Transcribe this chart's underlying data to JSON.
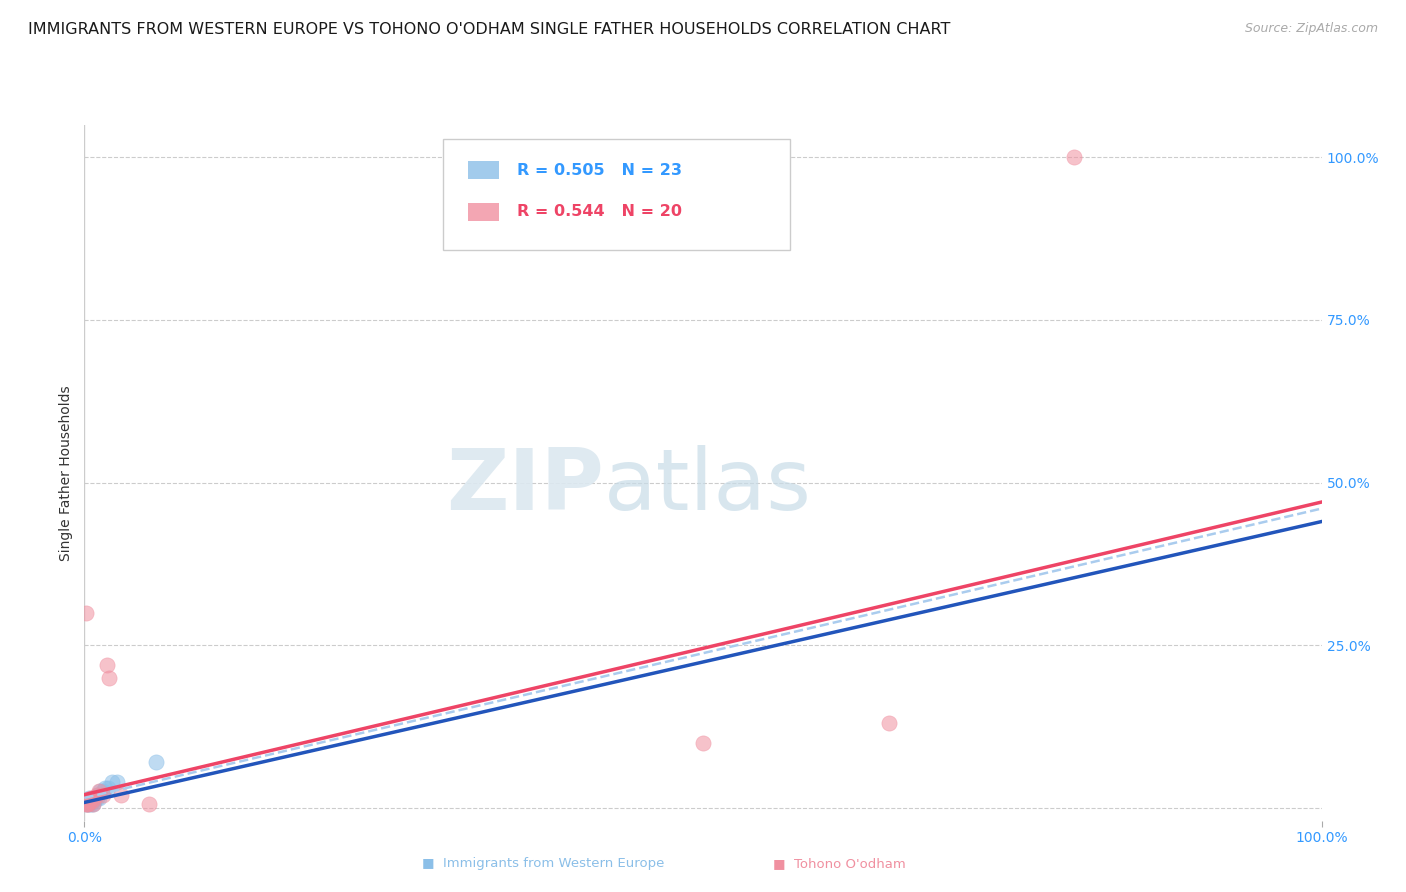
{
  "title": "IMMIGRANTS FROM WESTERN EUROPE VS TOHONO O'ODHAM SINGLE FATHER HOUSEHOLDS CORRELATION CHART",
  "source": "Source: ZipAtlas.com",
  "ylabel": "Single Father Households",
  "y_ticks": [
    0.0,
    0.25,
    0.5,
    0.75,
    1.0
  ],
  "y_tick_labels": [
    "",
    "25.0%",
    "50.0%",
    "75.0%",
    "100.0%"
  ],
  "x_range": [
    0.0,
    1.0
  ],
  "y_range": [
    -0.02,
    1.05
  ],
  "watermark_zip": "ZIP",
  "watermark_atlas": "atlas",
  "legend_entries": [
    {
      "label": "Immigrants from Western Europe",
      "R": "0.505",
      "N": "23",
      "color": "#8bbfe8"
    },
    {
      "label": "Tohono O'odham",
      "R": "0.544",
      "N": "20",
      "color": "#f090a0"
    }
  ],
  "blue_scatter_x": [
    0.001,
    0.002,
    0.003,
    0.003,
    0.004,
    0.004,
    0.005,
    0.005,
    0.006,
    0.007,
    0.007,
    0.008,
    0.009,
    0.01,
    0.011,
    0.012,
    0.013,
    0.015,
    0.017,
    0.019,
    0.022,
    0.026,
    0.058
  ],
  "blue_scatter_y": [
    0.005,
    0.008,
    0.005,
    0.01,
    0.005,
    0.015,
    0.005,
    0.01,
    0.01,
    0.005,
    0.015,
    0.01,
    0.015,
    0.015,
    0.02,
    0.015,
    0.025,
    0.025,
    0.03,
    0.03,
    0.04,
    0.04,
    0.07
  ],
  "pink_scatter_x": [
    0.001,
    0.002,
    0.003,
    0.004,
    0.005,
    0.006,
    0.007,
    0.008,
    0.01,
    0.012,
    0.015,
    0.018,
    0.02,
    0.03,
    0.052,
    0.5,
    0.65,
    0.8,
    0.001,
    0.002
  ],
  "pink_scatter_y": [
    0.005,
    0.01,
    0.005,
    0.008,
    0.015,
    0.01,
    0.005,
    0.015,
    0.02,
    0.025,
    0.02,
    0.22,
    0.2,
    0.02,
    0.005,
    0.1,
    0.13,
    1.0,
    0.3,
    0.005
  ],
  "blue_line": {
    "x0": 0.0,
    "y0": 0.008,
    "x1": 1.0,
    "y1": 0.44
  },
  "pink_line": {
    "x0": 0.0,
    "y0": 0.02,
    "x1": 1.0,
    "y1": 0.47
  },
  "dashed_line": {
    "x0": 0.0,
    "y0": 0.015,
    "x1": 1.0,
    "y1": 0.46
  },
  "scatter_size": 120,
  "scatter_alpha": 0.55,
  "bg_color": "#ffffff",
  "grid_color": "#cccccc",
  "title_color": "#1a1a1a",
  "axis_label_color": "#3399ff",
  "title_fontsize": 11.5,
  "label_fontsize": 10
}
